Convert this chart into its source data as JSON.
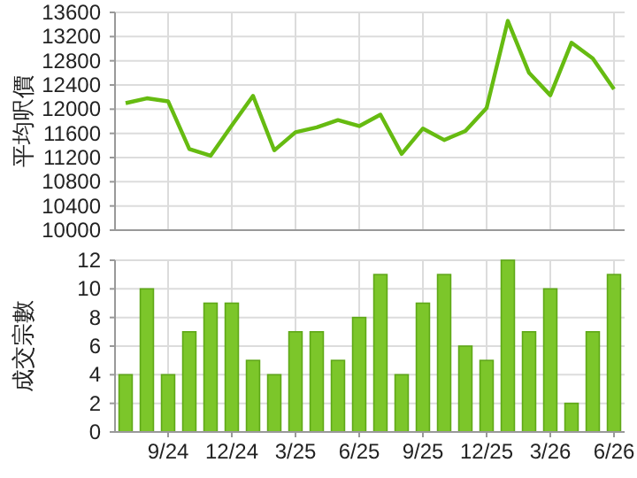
{
  "chart_data": [
    {
      "type": "line",
      "ylabel": "平均呎價",
      "categories": [
        null,
        null,
        null,
        null,
        null,
        null,
        null,
        null,
        null,
        null,
        null,
        null,
        null,
        null,
        null,
        null,
        null,
        null,
        null,
        null,
        null,
        null,
        null,
        null
      ],
      "values": [
        12100,
        12180,
        12130,
        11340,
        11230,
        11730,
        12220,
        11320,
        11620,
        11700,
        11820,
        11720,
        11910,
        11260,
        11680,
        11490,
        11640,
        12020,
        13460,
        12600,
        12230,
        13100,
        12840,
        12330
      ],
      "color": "#66bb11",
      "ylim": [
        10000,
        13600
      ],
      "yticks": [
        10000,
        10400,
        10800,
        11200,
        11600,
        12000,
        12400,
        12800,
        13200,
        13600
      ],
      "grid": true,
      "tick_labels": "y",
      "marker": "none"
    },
    {
      "type": "bar",
      "ylabel": "成交宗數",
      "categories": [
        null,
        null,
        "9/24",
        null,
        null,
        "12/24",
        null,
        null,
        "3/25",
        null,
        null,
        "6/25",
        null,
        null,
        "9/25",
        null,
        null,
        "12/25",
        null,
        null,
        "3/26",
        null,
        null,
        "6/26"
      ],
      "values": [
        4,
        10,
        4,
        7,
        9,
        9,
        5,
        4,
        7,
        7,
        5,
        8,
        11,
        4,
        9,
        11,
        6,
        5,
        12,
        7,
        10,
        2,
        7,
        11
      ],
      "color": "#7cc62a",
      "ylim": [
        0,
        12
      ],
      "yticks": [
        0,
        2,
        4,
        6,
        8,
        10,
        12
      ],
      "grid": true
    }
  ]
}
